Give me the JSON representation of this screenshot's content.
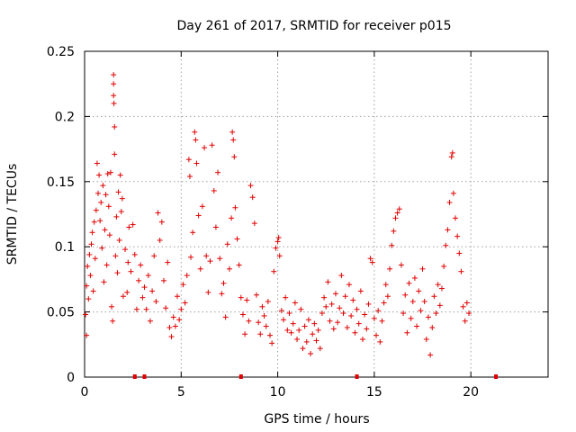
{
  "chart_data": {
    "type": "scatter",
    "title": "Day 261 of 2017, SRMTID for receiver p015",
    "xlabel": "GPS time / hours",
    "ylabel": "SRMTID / TECUs",
    "xlim": [
      0,
      24
    ],
    "ylim": [
      0,
      0.25
    ],
    "xticks": [
      0,
      5,
      10,
      15,
      20
    ],
    "xtick_labels": [
      "0",
      "5",
      "10",
      "15",
      "20"
    ],
    "yticks": [
      0,
      0.05,
      0.1,
      0.15,
      0.2,
      0.25
    ],
    "ytick_labels": [
      "0",
      "0.05",
      "0.1",
      "0.15",
      "0.2",
      "0.25"
    ],
    "grid": true,
    "marker": "+",
    "color": "#e00000",
    "series": [
      {
        "name": "p015",
        "points": [
          [
            0.05,
            0.048
          ],
          [
            0.1,
            0.032
          ],
          [
            0.1,
            0.07
          ],
          [
            0.15,
            0.085
          ],
          [
            0.2,
            0.06
          ],
          [
            0.25,
            0.094
          ],
          [
            0.3,
            0.078
          ],
          [
            0.35,
            0.102
          ],
          [
            0.4,
            0.111
          ],
          [
            0.45,
            0.066
          ],
          [
            0.5,
            0.119
          ],
          [
            0.55,
            0.091
          ],
          [
            0.6,
            0.128
          ],
          [
            0.65,
            0.164
          ],
          [
            0.7,
            0.141
          ],
          [
            0.75,
            0.155
          ],
          [
            0.8,
            0.12
          ],
          [
            0.85,
            0.134
          ],
          [
            0.9,
            0.099
          ],
          [
            0.95,
            0.147
          ],
          [
            1.0,
            0.073
          ],
          [
            1.05,
            0.113
          ],
          [
            1.1,
            0.14
          ],
          [
            1.15,
            0.086
          ],
          [
            1.2,
            0.156
          ],
          [
            1.25,
            0.131
          ],
          [
            1.3,
            0.109
          ],
          [
            1.35,
            0.157
          ],
          [
            1.4,
            0.054
          ],
          [
            1.45,
            0.043
          ],
          [
            1.5,
            0.232
          ],
          [
            1.5,
            0.225
          ],
          [
            1.5,
            0.216
          ],
          [
            1.52,
            0.21
          ],
          [
            1.55,
            0.192
          ],
          [
            1.55,
            0.171
          ],
          [
            1.6,
            0.093
          ],
          [
            1.65,
            0.123
          ],
          [
            1.7,
            0.08
          ],
          [
            1.75,
            0.142
          ],
          [
            1.8,
            0.105
          ],
          [
            1.85,
            0.155
          ],
          [
            1.9,
            0.127
          ],
          [
            1.95,
            0.137
          ],
          [
            2.0,
            0.062
          ],
          [
            2.1,
            0.098
          ],
          [
            2.2,
            0.065
          ],
          [
            2.25,
            0.088
          ],
          [
            2.3,
            0.115
          ],
          [
            2.4,
            0.081
          ],
          [
            2.5,
            0.117
          ],
          [
            2.6,
            0.094
          ],
          [
            2.7,
            0.052
          ],
          [
            2.8,
            0.074
          ],
          [
            2.9,
            0.086
          ],
          [
            3.0,
            0.061
          ],
          [
            3.1,
            0.069
          ],
          [
            3.2,
            0.052
          ],
          [
            3.3,
            0.078
          ],
          [
            3.4,
            0.043
          ],
          [
            3.5,
            0.066
          ],
          [
            3.6,
            0.093
          ],
          [
            3.7,
            0.058
          ],
          [
            3.8,
            0.126
          ],
          [
            3.9,
            0.105
          ],
          [
            4.0,
            0.119
          ],
          [
            4.1,
            0.074
          ],
          [
            4.2,
            0.053
          ],
          [
            4.3,
            0.088
          ],
          [
            4.4,
            0.038
          ],
          [
            4.5,
            0.031
          ],
          [
            4.6,
            0.046
          ],
          [
            4.7,
            0.039
          ],
          [
            4.8,
            0.062
          ],
          [
            4.9,
            0.044
          ],
          [
            5.0,
            0.052
          ],
          [
            5.1,
            0.071
          ],
          [
            5.2,
            0.057
          ],
          [
            5.3,
            0.078
          ],
          [
            5.4,
            0.167
          ],
          [
            5.45,
            0.154
          ],
          [
            5.5,
            0.092
          ],
          [
            5.6,
            0.111
          ],
          [
            5.7,
            0.188
          ],
          [
            5.75,
            0.182
          ],
          [
            5.8,
            0.164
          ],
          [
            5.9,
            0.124
          ],
          [
            6.0,
            0.083
          ],
          [
            6.1,
            0.131
          ],
          [
            6.2,
            0.176
          ],
          [
            6.3,
            0.093
          ],
          [
            6.4,
            0.065
          ],
          [
            6.5,
            0.089
          ],
          [
            6.6,
            0.178
          ],
          [
            6.7,
            0.143
          ],
          [
            6.8,
            0.115
          ],
          [
            6.9,
            0.157
          ],
          [
            7.0,
            0.091
          ],
          [
            7.1,
            0.064
          ],
          [
            7.2,
            0.072
          ],
          [
            7.3,
            0.046
          ],
          [
            7.4,
            0.102
          ],
          [
            7.5,
            0.083
          ],
          [
            7.6,
            0.122
          ],
          [
            7.65,
            0.188
          ],
          [
            7.7,
            0.182
          ],
          [
            7.75,
            0.169
          ],
          [
            7.8,
            0.13
          ],
          [
            7.9,
            0.106
          ],
          [
            8.0,
            0.086
          ],
          [
            8.1,
            0.061
          ],
          [
            8.2,
            0.048
          ],
          [
            8.3,
            0.033
          ],
          [
            8.4,
            0.059
          ],
          [
            8.5,
            0.043
          ],
          [
            8.6,
            0.147
          ],
          [
            8.7,
            0.138
          ],
          [
            8.8,
            0.118
          ],
          [
            8.9,
            0.063
          ],
          [
            9.0,
            0.042
          ],
          [
            9.1,
            0.033
          ],
          [
            9.2,
            0.054
          ],
          [
            9.3,
            0.047
          ],
          [
            9.4,
            0.039
          ],
          [
            9.5,
            0.058
          ],
          [
            9.6,
            0.032
          ],
          [
            9.7,
            0.026
          ],
          [
            9.8,
            0.081
          ],
          [
            9.9,
            0.099
          ],
          [
            10.0,
            0.104
          ],
          [
            10.05,
            0.107
          ],
          [
            10.1,
            0.093
          ],
          [
            10.2,
            0.051
          ],
          [
            10.3,
            0.044
          ],
          [
            10.4,
            0.061
          ],
          [
            10.5,
            0.036
          ],
          [
            10.6,
            0.049
          ],
          [
            10.7,
            0.034
          ],
          [
            10.8,
            0.041
          ],
          [
            10.9,
            0.057
          ],
          [
            11.0,
            0.029
          ],
          [
            11.1,
            0.036
          ],
          [
            11.2,
            0.052
          ],
          [
            11.3,
            0.022
          ],
          [
            11.4,
            0.039
          ],
          [
            11.5,
            0.027
          ],
          [
            11.6,
            0.044
          ],
          [
            11.7,
            0.018
          ],
          [
            11.8,
            0.033
          ],
          [
            11.9,
            0.041
          ],
          [
            12.0,
            0.028
          ],
          [
            12.1,
            0.036
          ],
          [
            12.2,
            0.022
          ],
          [
            12.3,
            0.049
          ],
          [
            12.4,
            0.061
          ],
          [
            12.5,
            0.054
          ],
          [
            12.6,
            0.073
          ],
          [
            12.7,
            0.043
          ],
          [
            12.8,
            0.056
          ],
          [
            12.9,
            0.037
          ],
          [
            13.0,
            0.064
          ],
          [
            13.1,
            0.042
          ],
          [
            13.2,
            0.053
          ],
          [
            13.3,
            0.078
          ],
          [
            13.4,
            0.049
          ],
          [
            13.5,
            0.062
          ],
          [
            13.6,
            0.038
          ],
          [
            13.7,
            0.071
          ],
          [
            13.8,
            0.047
          ],
          [
            13.9,
            0.059
          ],
          [
            14.0,
            0.034
          ],
          [
            14.1,
            0.052
          ],
          [
            14.2,
            0.041
          ],
          [
            14.3,
            0.066
          ],
          [
            14.4,
            0.029
          ],
          [
            14.5,
            0.048
          ],
          [
            14.6,
            0.037
          ],
          [
            14.7,
            0.056
          ],
          [
            14.8,
            0.091
          ],
          [
            14.9,
            0.088
          ],
          [
            15.0,
            0.045
          ],
          [
            15.1,
            0.032
          ],
          [
            15.2,
            0.051
          ],
          [
            15.3,
            0.027
          ],
          [
            15.4,
            0.043
          ],
          [
            15.5,
            0.057
          ],
          [
            15.6,
            0.071
          ],
          [
            15.7,
            0.062
          ],
          [
            15.8,
            0.083
          ],
          [
            15.9,
            0.101
          ],
          [
            16.0,
            0.112
          ],
          [
            16.1,
            0.122
          ],
          [
            16.2,
            0.126
          ],
          [
            16.3,
            0.129
          ],
          [
            16.4,
            0.086
          ],
          [
            16.5,
            0.049
          ],
          [
            16.6,
            0.063
          ],
          [
            16.7,
            0.034
          ],
          [
            16.8,
            0.072
          ],
          [
            16.9,
            0.045
          ],
          [
            17.0,
            0.058
          ],
          [
            17.1,
            0.076
          ],
          [
            17.2,
            0.039
          ],
          [
            17.3,
            0.066
          ],
          [
            17.4,
            0.051
          ],
          [
            17.5,
            0.083
          ],
          [
            17.6,
            0.058
          ],
          [
            17.7,
            0.029
          ],
          [
            17.8,
            0.046
          ],
          [
            17.9,
            0.017
          ],
          [
            18.0,
            0.038
          ],
          [
            18.1,
            0.062
          ],
          [
            18.2,
            0.049
          ],
          [
            18.3,
            0.071
          ],
          [
            18.4,
            0.055
          ],
          [
            18.5,
            0.068
          ],
          [
            18.6,
            0.085
          ],
          [
            18.7,
            0.101
          ],
          [
            18.8,
            0.113
          ],
          [
            18.9,
            0.134
          ],
          [
            19.0,
            0.169
          ],
          [
            19.05,
            0.172
          ],
          [
            19.1,
            0.141
          ],
          [
            19.2,
            0.122
          ],
          [
            19.3,
            0.108
          ],
          [
            19.4,
            0.095
          ],
          [
            19.5,
            0.081
          ],
          [
            19.6,
            0.054
          ],
          [
            19.7,
            0.043
          ],
          [
            19.8,
            0.057
          ],
          [
            19.9,
            0.049
          ]
        ]
      }
    ],
    "zero_markers_x": [
      2.6,
      3.1,
      8.1,
      14.1,
      21.3
    ]
  }
}
